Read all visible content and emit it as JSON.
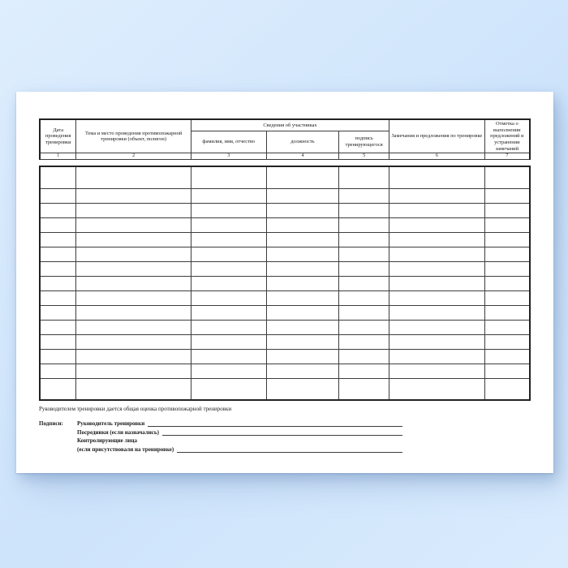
{
  "page": {
    "background_color": "#d3e8fd",
    "paper_color": "#ffffff"
  },
  "table": {
    "headers": {
      "col1": "Дата проведения тренировки",
      "col2": "Тема и место проведения противопожарной тренировки (объект, полигон)",
      "participants_group": "Сведения об участниках",
      "col3": "фамилия, имя, отчество",
      "col4": "должность",
      "col5": "подпись тренирующегося",
      "col6": "Замечания и предложения по тренировке",
      "col7": "Отметка о выполнении предложений и устранении замечаний"
    },
    "number_row": [
      "1",
      "2",
      "3",
      "4",
      "5",
      "6",
      "7"
    ],
    "body_rows": 15,
    "body_columns": 7
  },
  "footer": {
    "note": "Руководителем тренировки дается общая оценка противопожарной тренировки",
    "signatures_caption": "Подписи:",
    "signature_lines": [
      {
        "label": "Руководитель тренировки",
        "line": true
      },
      {
        "label": "Посредники (если назначались)",
        "line": true
      },
      {
        "label": "Контролирующие лица",
        "line": false
      },
      {
        "label": "(если присутствовали на тренировке)",
        "line": true
      }
    ]
  }
}
